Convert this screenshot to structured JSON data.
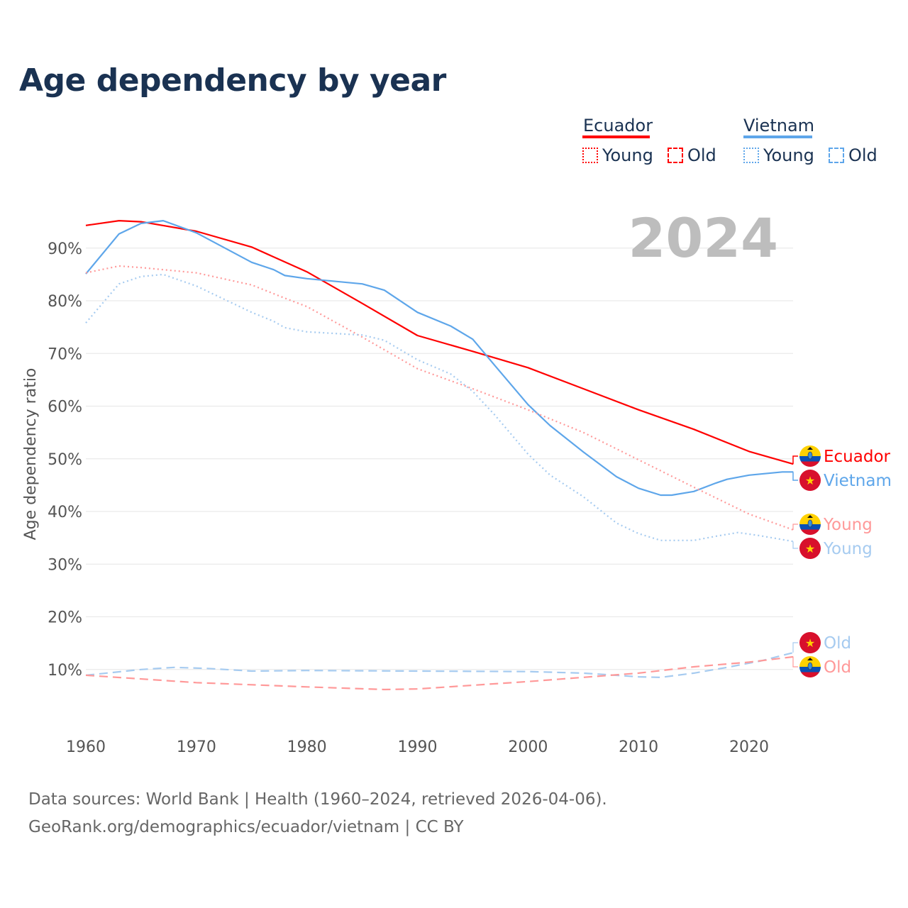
{
  "title": "Age dependency by year",
  "legend": {
    "countries": [
      {
        "name": "Ecuador",
        "color": "#ff0000",
        "young": "Young",
        "old": "Old"
      },
      {
        "name": "Vietnam",
        "color": "#5ea6ea",
        "young": "Young",
        "old": "Old"
      }
    ]
  },
  "year_watermark": "2024",
  "source": {
    "line1": "Data sources: World Bank | Health (1960–2024, retrieved 2026-04-06).",
    "line2": "GeoRank.org/demographics/ecuador/vietnam | CC BY"
  },
  "chart_data": {
    "type": "line",
    "title": "Age dependency by year",
    "xlabel": "",
    "ylabel": "Age dependency ratio",
    "xlim": [
      1960,
      2024
    ],
    "ylim": [
      0,
      100
    ],
    "xticks": [
      "1960",
      "1970",
      "1980",
      "1990",
      "2000",
      "2010",
      "2020"
    ],
    "yticks": [
      "10%",
      "20%",
      "30%",
      "40%",
      "50%",
      "60%",
      "70%",
      "80%",
      "90%"
    ],
    "grid": true,
    "legend_position": "top-right",
    "series": [
      {
        "name": "Ecuador",
        "label": "Ecuador",
        "style": "solid",
        "color": "#ff0000",
        "x": [
          1960,
          1963,
          1965,
          1970,
          1975,
          1980,
          1985,
          1990,
          1995,
          2000,
          2005,
          2010,
          2015,
          2020,
          2024
        ],
        "y": [
          94.3,
          95.2,
          95.0,
          93.2,
          90.2,
          85.5,
          79.5,
          73.4,
          70.4,
          67.3,
          63.3,
          59.3,
          55.6,
          51.4,
          49.0
        ]
      },
      {
        "name": "Vietnam",
        "label": "Vietnam",
        "style": "solid",
        "color": "#5ea6ea",
        "x": [
          1960,
          1963,
          1965,
          1967,
          1970,
          1975,
          1977,
          1978,
          1980,
          1985,
          1987,
          1990,
          1993,
          1995,
          1997,
          2000,
          2002,
          2005,
          2008,
          2010,
          2012,
          2013,
          2015,
          2017,
          2018,
          2020,
          2023,
          2024
        ],
        "y": [
          85.1,
          92.7,
          94.7,
          95.2,
          92.9,
          87.3,
          85.9,
          84.8,
          84.2,
          83.2,
          82.0,
          77.8,
          75.2,
          72.7,
          67.7,
          60.3,
          56.3,
          51.3,
          46.6,
          44.4,
          43.1,
          43.1,
          43.8,
          45.4,
          46.1,
          46.9,
          47.5,
          47.5
        ]
      },
      {
        "name": "Ecuador Young",
        "label": "Young",
        "style": "dotted",
        "color": "#ff9999",
        "x": [
          1960,
          1963,
          1965,
          1970,
          1975,
          1978,
          1980,
          1985,
          1990,
          1995,
          2000,
          2005,
          2010,
          2015,
          2020,
          2024
        ],
        "y": [
          85.3,
          86.6,
          86.3,
          85.3,
          83.0,
          80.5,
          78.9,
          73.1,
          67.1,
          63.3,
          59.3,
          55.0,
          49.8,
          44.6,
          39.5,
          36.5
        ]
      },
      {
        "name": "Vietnam Young",
        "label": "Young",
        "style": "dotted",
        "color": "#a6cbf0",
        "x": [
          1960,
          1963,
          1965,
          1967,
          1970,
          1975,
          1977,
          1978,
          1980,
          1985,
          1987,
          1990,
          1993,
          1995,
          1997,
          2000,
          2002,
          2005,
          2008,
          2010,
          2012,
          2015,
          2017,
          2019,
          2021,
          2024
        ],
        "y": [
          75.8,
          83.2,
          84.6,
          85.0,
          82.8,
          77.8,
          76.1,
          74.9,
          74.1,
          73.5,
          72.5,
          68.8,
          66.1,
          62.8,
          58.3,
          50.9,
          46.9,
          42.8,
          37.8,
          35.8,
          34.5,
          34.5,
          35.3,
          36.0,
          35.4,
          34.3
        ]
      },
      {
        "name": "Vietnam Old",
        "label": "Old",
        "style": "dashed",
        "color": "#a6cbf0",
        "x": [
          1960,
          1965,
          1968,
          1971,
          1975,
          1980,
          1990,
          2000,
          2005,
          2010,
          2012,
          2015,
          2018,
          2021,
          2024
        ],
        "y": [
          8.9,
          10.0,
          10.4,
          10.2,
          9.7,
          9.8,
          9.7,
          9.6,
          9.3,
          8.6,
          8.5,
          9.3,
          10.4,
          11.6,
          13.2
        ]
      },
      {
        "name": "Ecuador Old",
        "label": "Old",
        "style": "dashed",
        "color": "#ff9999",
        "x": [
          1960,
          1970,
          1980,
          1987,
          1990,
          2000,
          2010,
          2015,
          2020,
          2024
        ],
        "y": [
          8.9,
          7.5,
          6.7,
          6.2,
          6.3,
          7.7,
          9.3,
          10.5,
          11.4,
          12.4
        ]
      }
    ]
  }
}
